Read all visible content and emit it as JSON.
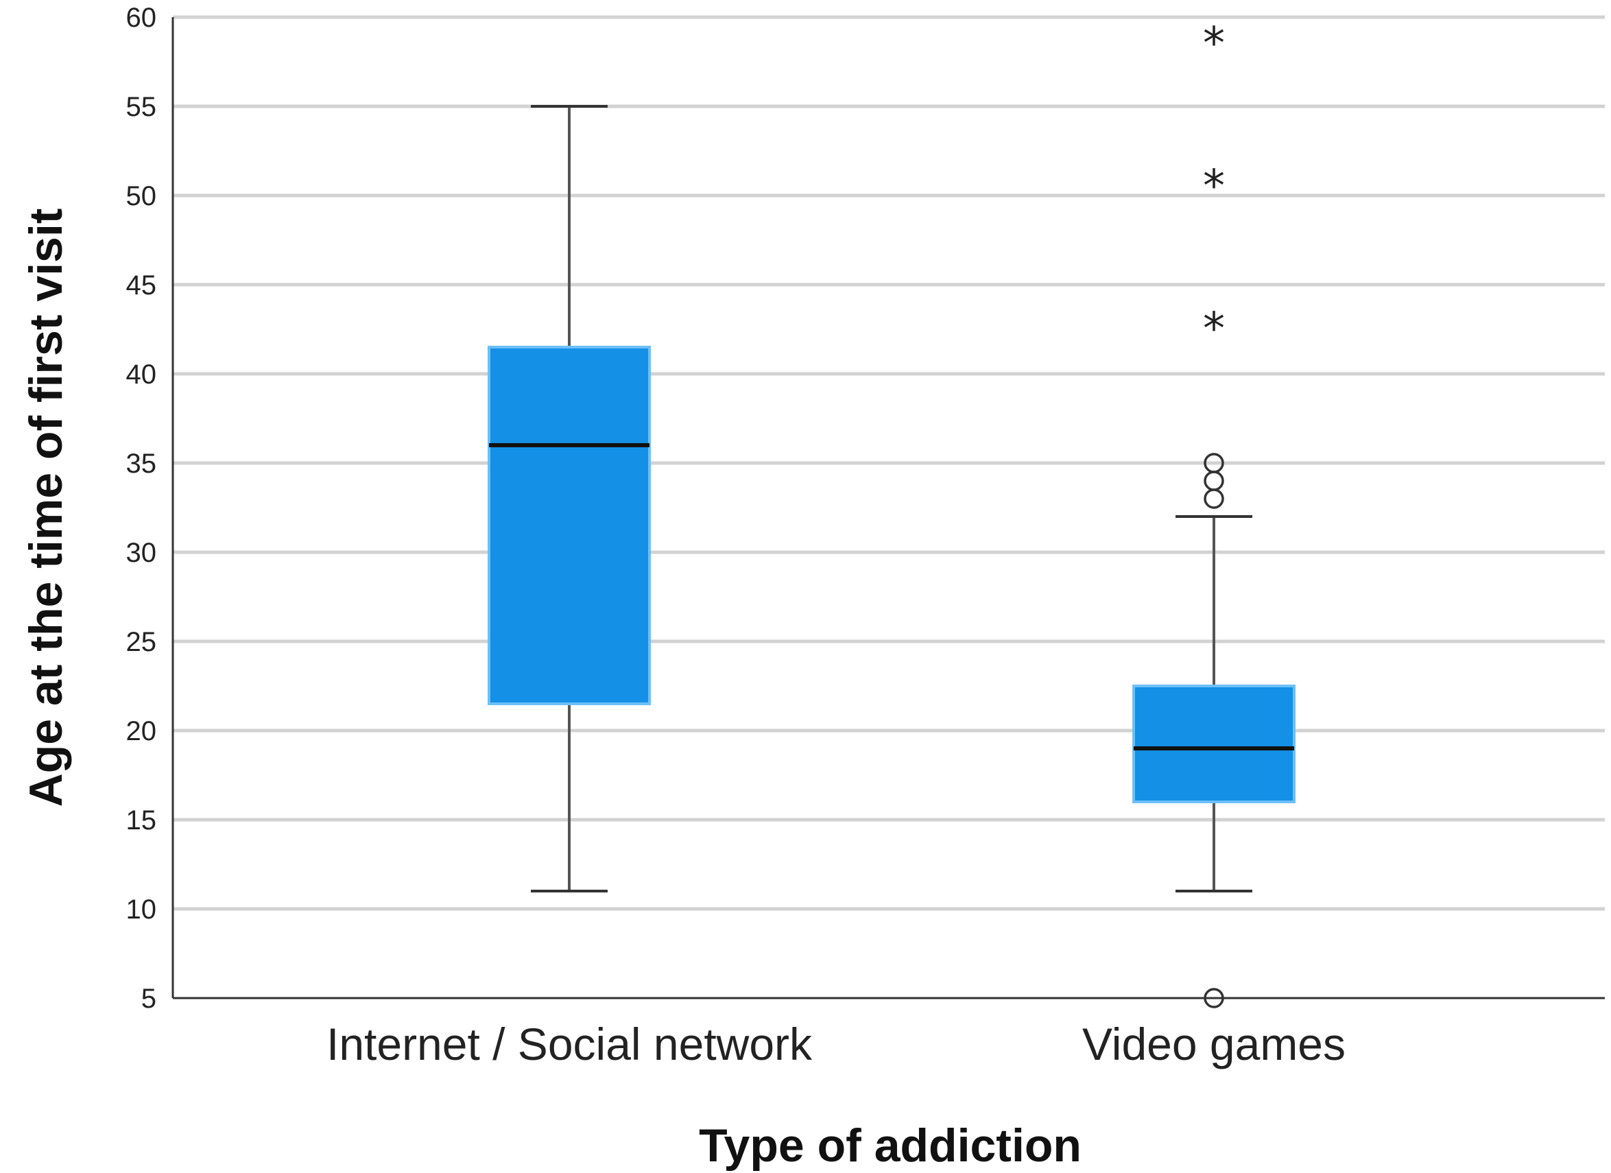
{
  "chart_data": {
    "type": "box",
    "xlabel": "Type of addiction",
    "ylabel": "Age at the time of first visit",
    "ylim": [
      5,
      60
    ],
    "yticks": [
      5,
      10,
      15,
      20,
      25,
      30,
      35,
      40,
      45,
      50,
      55,
      60
    ],
    "grid": true,
    "box_color": "#1490e6",
    "box_edge_color": "#6cc0f7",
    "categories": [
      "Internet / Social network",
      "Video games"
    ],
    "boxes": [
      {
        "category": "Internet / Social network",
        "whisker_low": 11,
        "q1": 21.5,
        "median": 36,
        "q3": 41.5,
        "whisker_high": 55,
        "outliers": [],
        "extremes": []
      },
      {
        "category": "Video games",
        "whisker_low": 11,
        "q1": 16,
        "median": 19,
        "q3": 22.5,
        "whisker_high": 32,
        "outliers": [
          33,
          34,
          35,
          5
        ],
        "extremes": [
          43,
          51,
          59
        ]
      }
    ]
  }
}
